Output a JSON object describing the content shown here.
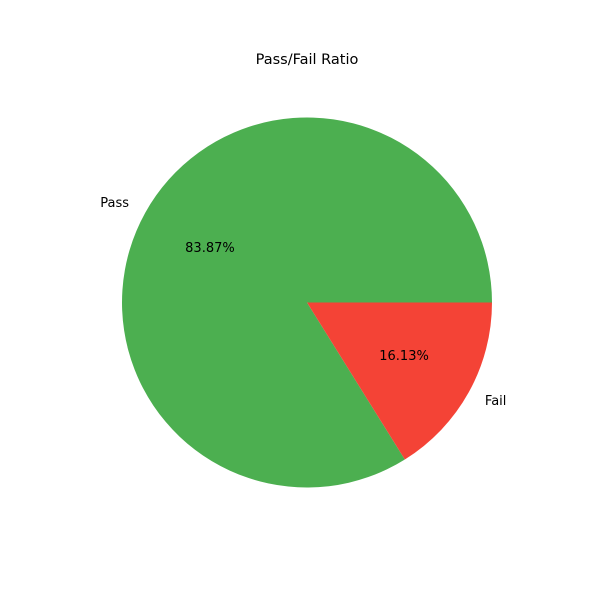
{
  "chart_data": {
    "type": "pie",
    "title": "Pass/Fail Ratio",
    "start_angle": 0,
    "direction": "counterclockwise",
    "slices": [
      {
        "label": "Pass",
        "value": 83.87,
        "percent_label": "83.87%",
        "color": "#4CAF50"
      },
      {
        "label": "Fail",
        "value": 16.13,
        "percent_label": "16.13%",
        "color": "#F44336"
      }
    ],
    "legend": "none"
  }
}
